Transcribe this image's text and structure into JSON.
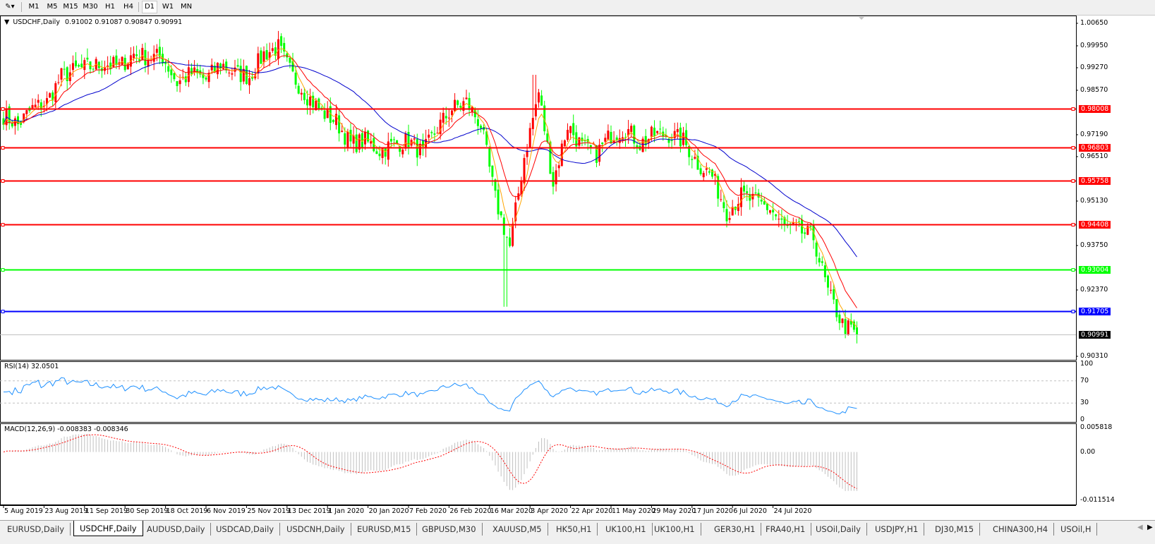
{
  "toolbar": {
    "timeframes": [
      "M1",
      "M5",
      "M15",
      "M30",
      "H1",
      "H4",
      "D1",
      "W1",
      "MN"
    ],
    "active_timeframe": "D1"
  },
  "chart": {
    "symbol_label": "USDCHF,Daily",
    "ohlc": "0.91002 0.91087 0.90847 0.90991",
    "price_ticks": [
      "1.00650",
      "0.99950",
      "0.99270",
      "0.98570",
      "0.97190",
      "0.96510",
      "0.95130",
      "0.93750",
      "0.92370",
      "0.90310"
    ],
    "levels": [
      {
        "value": "0.98008",
        "color": "#ff0000"
      },
      {
        "value": "0.96803",
        "color": "#ff0000"
      },
      {
        "value": "0.95758",
        "color": "#ff0000"
      },
      {
        "value": "0.94408",
        "color": "#ff0000"
      },
      {
        "value": "0.93004",
        "color": "#00ff00"
      },
      {
        "value": "0.91705",
        "color": "#0000ff"
      }
    ],
    "current_price": "0.90991",
    "bull_candle_color": "#ff0000",
    "bear_candle_color": "#00ff00",
    "ma_colors": {
      "fast": "#ffa500",
      "medium": "#ff0000",
      "slow": "#0000cd"
    },
    "dates": [
      "5 Aug 2019",
      "23 Aug 2019",
      "11 Sep 2019",
      "30 Sep 2019",
      "18 Oct 2019",
      "6 Nov 2019",
      "25 Nov 2019",
      "13 Dec 2019",
      "1 Jan 2020",
      "20 Jan 2020",
      "7 Feb 2020",
      "26 Feb 2020",
      "16 Mar 2020",
      "3 Apr 2020",
      "22 Apr 2020",
      "11 May 2020",
      "29 May 2020",
      "17 Jun 2020",
      "6 Jul 2020",
      "24 Jul 2020"
    ]
  },
  "rsi": {
    "label": "RSI(14) 32.0501",
    "ticks": [
      "100",
      "70",
      "30",
      "0"
    ],
    "line_color": "#1e90ff"
  },
  "macd": {
    "label": "MACD(12,26,9) -0.008383 -0.008346",
    "ticks": [
      "0.005818",
      "0.00",
      "-0.011514"
    ],
    "histogram_color": "#c0c0c0",
    "signal_color": "#ff0000"
  },
  "chart_data": {
    "type": "candlestick",
    "symbol": "USDCHF",
    "timeframe": "Daily",
    "x_range": [
      "5 Aug 2019",
      "31 Jul 2020"
    ],
    "ylim": [
      0.9031,
      1.0065
    ],
    "weekly_closes": [
      0.978,
      0.975,
      0.98,
      0.982,
      0.99,
      0.992,
      0.993,
      0.994,
      0.993,
      0.997,
      0.996,
      0.996,
      0.988,
      0.991,
      0.989,
      0.994,
      0.991,
      0.99,
      0.997,
      0.999,
      0.99,
      0.984,
      0.979,
      0.976,
      0.969,
      0.97,
      0.967,
      0.969,
      0.97,
      0.966,
      0.974,
      0.98,
      0.982,
      0.975,
      0.952,
      0.937,
      0.965,
      0.985,
      0.957,
      0.975,
      0.968,
      0.966,
      0.972,
      0.974,
      0.969,
      0.972,
      0.972,
      0.97,
      0.963,
      0.959,
      0.948,
      0.953,
      0.951,
      0.949,
      0.943,
      0.942,
      0.94,
      0.923,
      0.913,
      0.90991
    ]
  },
  "tabs": [
    "EURUSD,Daily",
    "USDCHF,Daily",
    "AUDUSD,Daily",
    "USDCAD,Daily",
    "USDCNH,Daily",
    "EURUSD,M15",
    "GBPUSD,M30",
    "XAUUSD,M5",
    "HK50,H1",
    "UK100,H1",
    "UK100,H1",
    "GER30,H1",
    "FRA40,H1",
    "USOil,Daily",
    "USDJPY,H1",
    "DJ30,M15",
    "CHINA300,H4",
    "USOil,H"
  ],
  "active_tab": "USDCHF,Daily"
}
